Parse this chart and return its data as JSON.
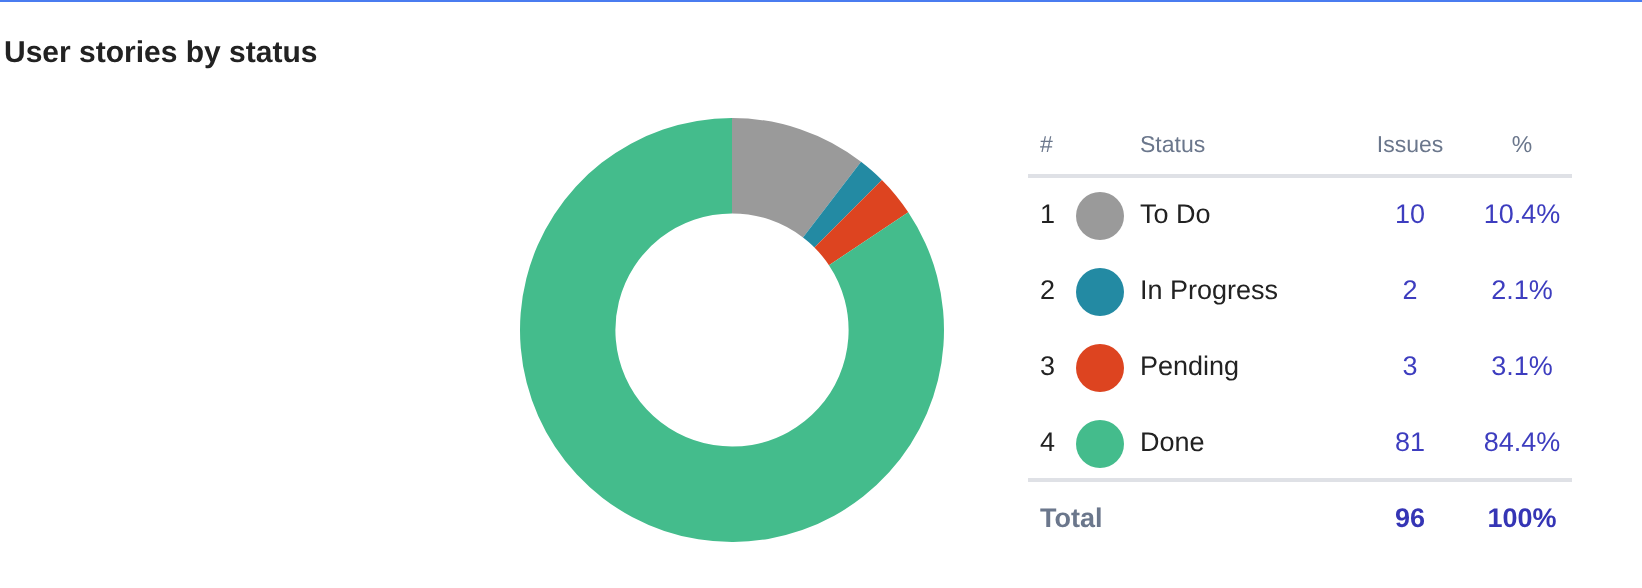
{
  "chart_data": {
    "type": "donut",
    "title": "User stories by status",
    "categories": [
      "To Do",
      "In Progress",
      "Pending",
      "Done"
    ],
    "values": [
      10,
      2,
      3,
      81
    ],
    "colors": [
      "#9a9a9a",
      "#238aa3",
      "#dd4420",
      "#44bc8c"
    ],
    "data_labels": true,
    "legend": "right",
    "annotations": [
      "#",
      "Status",
      "Issues",
      "%",
      "1",
      "2",
      "3",
      "4",
      "10.4%",
      "2.1%",
      "3.1%",
      "84.4%",
      "Total",
      "96",
      "100%"
    ]
  }
}
